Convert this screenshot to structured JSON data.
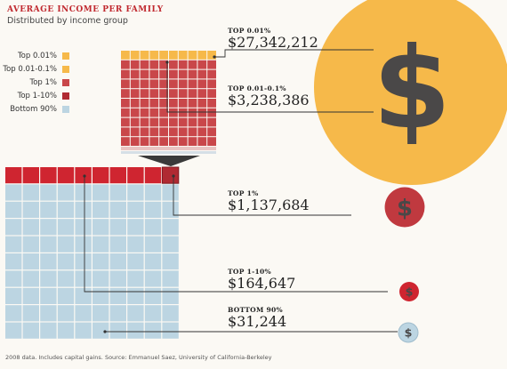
{
  "header": {
    "title": "AVERAGE INCOME PER FAMILY",
    "subtitle": "Distributed by income group"
  },
  "legend": [
    {
      "label": "Top 0.01%",
      "color": "#f6b94a"
    },
    {
      "label": "Top 0.01-0.1%",
      "color": "#f6b94a"
    },
    {
      "label": "Top 1%",
      "color": "#c9474a"
    },
    {
      "label": "Top 1-10%",
      "color": "#b02a32"
    },
    {
      "label": "Bottom 90%",
      "color": "#bcd5e2"
    }
  ],
  "chart_data": {
    "type": "bubble",
    "title": "AVERAGE INCOME PER FAMILY",
    "subtitle": "Distributed by income group",
    "series": [
      {
        "name": "TOP 0.01%",
        "value": 27342212,
        "display": "$27,342,212",
        "color": "#f6b94a"
      },
      {
        "name": "TOP 0.01-0.1%",
        "value": 3238386,
        "display": "$3,238,386",
        "color": "#c9474a"
      },
      {
        "name": "TOP 1%",
        "value": 1137684,
        "display": "$1,137,684",
        "color": "#c0393f"
      },
      {
        "name": "TOP 1-10%",
        "value": 164647,
        "display": "$164,647",
        "color": "#cf2530"
      },
      {
        "name": "BOTTOM 90%",
        "value": 31244,
        "display": "$31,244",
        "color": "#bcd5e2"
      }
    ],
    "symbol": "$"
  },
  "footer": {
    "source": "2008 data. Includes capital gains. Source: Emmanuel Saez, University of California-Berkeley"
  }
}
